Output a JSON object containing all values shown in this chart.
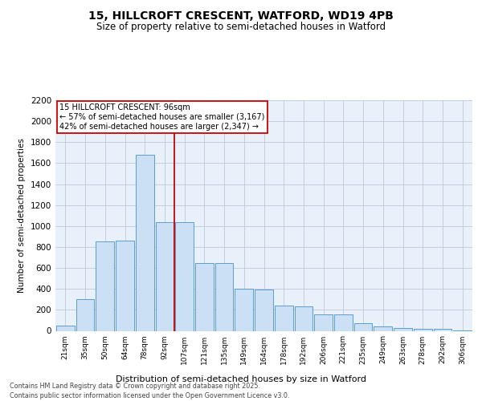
{
  "title_line1": "15, HILLCROFT CRESCENT, WATFORD, WD19 4PB",
  "title_line2": "Size of property relative to semi-detached houses in Watford",
  "xlabel": "Distribution of semi-detached houses by size in Watford",
  "ylabel": "Number of semi-detached properties",
  "annotation_line1": "15 HILLCROFT CRESCENT: 96sqm",
  "annotation_line2": "← 57% of semi-detached houses are smaller (3,167)",
  "annotation_line3": "42% of semi-detached houses are larger (2,347) →",
  "footer_line1": "Contains HM Land Registry data © Crown copyright and database right 2025.",
  "footer_line2": "Contains public sector information licensed under the Open Government Licence v3.0.",
  "categories": [
    "21sqm",
    "35sqm",
    "50sqm",
    "64sqm",
    "78sqm",
    "92sqm",
    "107sqm",
    "121sqm",
    "135sqm",
    "149sqm",
    "164sqm",
    "178sqm",
    "192sqm",
    "206sqm",
    "221sqm",
    "235sqm",
    "249sqm",
    "263sqm",
    "278sqm",
    "292sqm",
    "306sqm"
  ],
  "bar_heights": [
    50,
    300,
    850,
    860,
    1680,
    1040,
    1040,
    650,
    650,
    400,
    395,
    240,
    230,
    155,
    155,
    75,
    40,
    30,
    20,
    20,
    5
  ],
  "bar_color": "#cce0f5",
  "bar_edge_color": "#5b9bd5",
  "vline_color": "#cc0000",
  "background_color": "#ffffff",
  "plot_bg_color": "#e8f0fa",
  "grid_color": "#c0c8d8",
  "ylim": [
    0,
    2200
  ],
  "yticks": [
    0,
    200,
    400,
    600,
    800,
    1000,
    1200,
    1400,
    1600,
    1800,
    2000,
    2200
  ]
}
